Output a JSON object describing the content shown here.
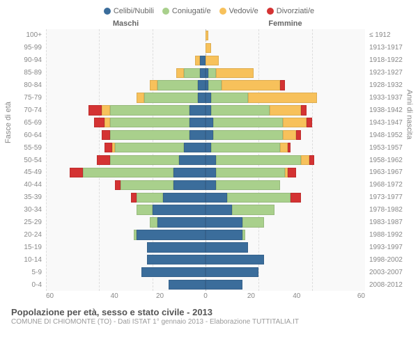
{
  "legend": {
    "items": [
      {
        "label": "Celibi/Nubili",
        "color": "#3b6d9b"
      },
      {
        "label": "Coniugati/e",
        "color": "#a9d08c"
      },
      {
        "label": "Vedovi/e",
        "color": "#f7c15b"
      },
      {
        "label": "Divorziati/e",
        "color": "#d43333"
      }
    ]
  },
  "headers": {
    "male": "Maschi",
    "female": "Femmine"
  },
  "axes": {
    "left_title": "Fasce di età",
    "right_title": "Anni di nascita",
    "x_max": 60,
    "x_ticks_left": [
      "60",
      "40",
      "20",
      "0"
    ],
    "x_ticks_right": [
      "0",
      "20",
      "40",
      "60"
    ],
    "grid_color": "#dddddd",
    "center_color": "#bbbbbb",
    "background": "#f9f9f9"
  },
  "colors": {
    "celibi": "#3b6d9b",
    "coniugati": "#a9d08c",
    "vedovi": "#f7c15b",
    "divorziati": "#d43333"
  },
  "rows": [
    {
      "age": "100+",
      "birth": "≤ 1912",
      "m": {
        "ce": 0,
        "co": 0,
        "ve": 0,
        "di": 0
      },
      "f": {
        "ce": 0,
        "co": 0,
        "ve": 1,
        "di": 0
      }
    },
    {
      "age": "95-99",
      "birth": "1913-1917",
      "m": {
        "ce": 0,
        "co": 0,
        "ve": 0,
        "di": 0
      },
      "f": {
        "ce": 0,
        "co": 0,
        "ve": 2,
        "di": 0
      }
    },
    {
      "age": "90-94",
      "birth": "1918-1922",
      "m": {
        "ce": 2,
        "co": 0,
        "ve": 2,
        "di": 0
      },
      "f": {
        "ce": 0,
        "co": 0,
        "ve": 5,
        "di": 0
      }
    },
    {
      "age": "85-89",
      "birth": "1923-1927",
      "m": {
        "ce": 2,
        "co": 6,
        "ve": 3,
        "di": 0
      },
      "f": {
        "ce": 1,
        "co": 3,
        "ve": 14,
        "di": 0
      }
    },
    {
      "age": "80-84",
      "birth": "1928-1932",
      "m": {
        "ce": 3,
        "co": 15,
        "ve": 3,
        "di": 0
      },
      "f": {
        "ce": 1,
        "co": 5,
        "ve": 22,
        "di": 2
      }
    },
    {
      "age": "75-79",
      "birth": "1933-1937",
      "m": {
        "ce": 3,
        "co": 20,
        "ve": 3,
        "di": 0
      },
      "f": {
        "ce": 2,
        "co": 14,
        "ve": 26,
        "di": 0
      }
    },
    {
      "age": "70-74",
      "birth": "1938-1942",
      "m": {
        "ce": 6,
        "co": 30,
        "ve": 3,
        "di": 5
      },
      "f": {
        "ce": 2,
        "co": 22,
        "ve": 12,
        "di": 2
      }
    },
    {
      "age": "65-69",
      "birth": "1943-1947",
      "m": {
        "ce": 6,
        "co": 30,
        "ve": 2,
        "di": 4
      },
      "f": {
        "ce": 3,
        "co": 26,
        "ve": 9,
        "di": 2
      }
    },
    {
      "age": "60-64",
      "birth": "1948-1952",
      "m": {
        "ce": 6,
        "co": 30,
        "ve": 0,
        "di": 3
      },
      "f": {
        "ce": 3,
        "co": 26,
        "ve": 5,
        "di": 2
      }
    },
    {
      "age": "55-59",
      "birth": "1953-1957",
      "m": {
        "ce": 8,
        "co": 26,
        "ve": 1,
        "di": 3
      },
      "f": {
        "ce": 2,
        "co": 26,
        "ve": 3,
        "di": 1
      }
    },
    {
      "age": "50-54",
      "birth": "1958-1962",
      "m": {
        "ce": 10,
        "co": 26,
        "ve": 0,
        "di": 5
      },
      "f": {
        "ce": 4,
        "co": 32,
        "ve": 3,
        "di": 2
      }
    },
    {
      "age": "45-49",
      "birth": "1963-1967",
      "m": {
        "ce": 12,
        "co": 34,
        "ve": 0,
        "di": 5
      },
      "f": {
        "ce": 4,
        "co": 26,
        "ve": 1,
        "di": 3
      }
    },
    {
      "age": "40-44",
      "birth": "1968-1972",
      "m": {
        "ce": 12,
        "co": 20,
        "ve": 0,
        "di": 2
      },
      "f": {
        "ce": 4,
        "co": 24,
        "ve": 0,
        "di": 0
      }
    },
    {
      "age": "35-39",
      "birth": "1973-1977",
      "m": {
        "ce": 16,
        "co": 10,
        "ve": 0,
        "di": 2
      },
      "f": {
        "ce": 8,
        "co": 24,
        "ve": 0,
        "di": 4
      }
    },
    {
      "age": "30-34",
      "birth": "1978-1982",
      "m": {
        "ce": 20,
        "co": 6,
        "ve": 0,
        "di": 0
      },
      "f": {
        "ce": 10,
        "co": 16,
        "ve": 0,
        "di": 0
      }
    },
    {
      "age": "25-29",
      "birth": "1983-1987",
      "m": {
        "ce": 18,
        "co": 3,
        "ve": 0,
        "di": 0
      },
      "f": {
        "ce": 14,
        "co": 8,
        "ve": 0,
        "di": 0
      }
    },
    {
      "age": "20-24",
      "birth": "1988-1992",
      "m": {
        "ce": 26,
        "co": 1,
        "ve": 0,
        "di": 0
      },
      "f": {
        "ce": 14,
        "co": 1,
        "ve": 0,
        "di": 0
      }
    },
    {
      "age": "15-19",
      "birth": "1993-1997",
      "m": {
        "ce": 22,
        "co": 0,
        "ve": 0,
        "di": 0
      },
      "f": {
        "ce": 16,
        "co": 0,
        "ve": 0,
        "di": 0
      }
    },
    {
      "age": "10-14",
      "birth": "1998-2002",
      "m": {
        "ce": 22,
        "co": 0,
        "ve": 0,
        "di": 0
      },
      "f": {
        "ce": 22,
        "co": 0,
        "ve": 0,
        "di": 0
      }
    },
    {
      "age": "5-9",
      "birth": "2003-2007",
      "m": {
        "ce": 24,
        "co": 0,
        "ve": 0,
        "di": 0
      },
      "f": {
        "ce": 20,
        "co": 0,
        "ve": 0,
        "di": 0
      }
    },
    {
      "age": "0-4",
      "birth": "2008-2012",
      "m": {
        "ce": 14,
        "co": 0,
        "ve": 0,
        "di": 0
      },
      "f": {
        "ce": 14,
        "co": 0,
        "ve": 0,
        "di": 0
      }
    }
  ],
  "footer": {
    "title": "Popolazione per età, sesso e stato civile - 2013",
    "subtitle": "COMUNE DI CHIOMONTE (TO) - Dati ISTAT 1° gennaio 2013 - Elaborazione TUTTITALIA.IT"
  },
  "typography": {
    "legend_fontsize": 11,
    "header_fontsize": 11,
    "axis_label_fontsize": 10,
    "title_fontsize": 13,
    "subtitle_fontsize": 10
  }
}
